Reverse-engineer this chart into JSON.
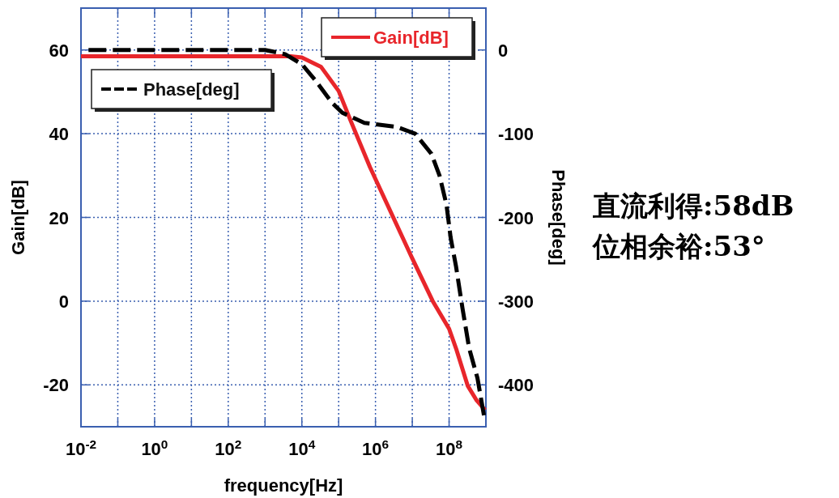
{
  "chart_data": {
    "type": "line",
    "xlabel": "frequency[Hz]",
    "ylabel": "Gain[dB]",
    "y2label": "Phase[deg]",
    "log": "x",
    "grid": true,
    "legend": "top",
    "xlim": [
      0.01,
      1000000000
    ],
    "ylim": [
      -30,
      70
    ],
    "y2lim": [
      -450,
      50
    ],
    "xticks": [
      {
        "value": 0.01,
        "label": "10$^{-2}$"
      },
      {
        "value": 0.1,
        "label": null
      },
      {
        "value": 1,
        "label": "10$^{0}$"
      },
      {
        "value": 10,
        "label": null
      },
      {
        "value": 100,
        "label": "10$^{2}$"
      },
      {
        "value": 1000,
        "label": null
      },
      {
        "value": 10000,
        "label": "10$^{4}$"
      },
      {
        "value": 100000,
        "label": null
      },
      {
        "value": 1000000,
        "label": "10$^{6}$"
      },
      {
        "value": 10000000,
        "label": null
      },
      {
        "value": 100000000,
        "label": "10$^{8}$"
      },
      {
        "value": 1000000000,
        "label": null
      }
    ],
    "yticks": [
      -20,
      0,
      20,
      40,
      60
    ],
    "y2ticks": [
      -400,
      -300,
      -200,
      -100,
      0
    ],
    "series": [
      {
        "name": "Gain[dB]",
        "color": "#e8262b",
        "line_style": "solid",
        "axis": "y",
        "x": [
          0.01,
          5000,
          10000,
          33000,
          100000,
          214000,
          710000,
          6300000,
          10000000,
          36000000,
          100000000,
          160000000,
          320000000,
          560000000,
          950000000
        ],
        "values": [
          58.5,
          58.5,
          58.2,
          56,
          50.2,
          43,
          32,
          14,
          10.2,
          0,
          -6.6,
          -11.7,
          -20.2,
          -23.7,
          -26
        ]
      },
      {
        "name": "Phase[deg]",
        "color": "#000000",
        "line_style": "dashed",
        "axis": "y2",
        "x": [
          0.016,
          1000,
          3500,
          10000,
          24000,
          66000,
          126000,
          500000,
          3800000,
          12000000,
          33000000,
          55000000,
          85000000,
          110000000,
          155000000,
          230000000,
          350000000,
          590000000,
          890000000
        ],
        "values": [
          0,
          0,
          -5,
          -17,
          -37,
          -63,
          -75,
          -87,
          -92,
          -100,
          -124,
          -150,
          -185,
          -224,
          -259,
          -308,
          -356,
          -392,
          -437
        ]
      }
    ],
    "annotations": [
      "直流利得:58dB",
      "位相余裕:53°"
    ]
  }
}
